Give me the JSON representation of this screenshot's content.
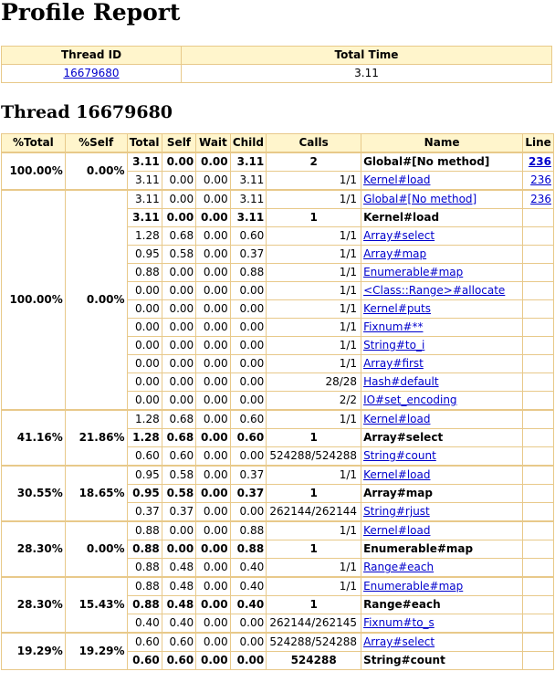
{
  "title": "Profile Report",
  "summary": {
    "headers": [
      "Thread ID",
      "Total Time"
    ],
    "thread_id": "16679680",
    "total_time": "3.11"
  },
  "thread_heading": "Thread 16679680",
  "table": {
    "headers": [
      "%Total",
      "%Self",
      "Total",
      "Self",
      "Wait",
      "Child",
      "Calls",
      "Name",
      "Line"
    ],
    "groups": [
      {
        "pct_total": "100.00%",
        "pct_self": "0.00%",
        "rows": [
          {
            "total": "3.11",
            "self": "0.00",
            "wait": "0.00",
            "child": "3.11",
            "calls": "2",
            "name": "Global#[No method]",
            "line": "236",
            "primary": true
          },
          {
            "total": "3.11",
            "self": "0.00",
            "wait": "0.00",
            "child": "3.11",
            "calls": "1/1",
            "name": "Kernel#load",
            "line": "236",
            "primary": false
          }
        ]
      },
      {
        "pct_total": "100.00%",
        "pct_self": "0.00%",
        "rows": [
          {
            "total": "3.11",
            "self": "0.00",
            "wait": "0.00",
            "child": "3.11",
            "calls": "1/1",
            "name": "Global#[No method]",
            "line": "236",
            "primary": false
          },
          {
            "total": "3.11",
            "self": "0.00",
            "wait": "0.00",
            "child": "3.11",
            "calls": "1",
            "name": "Kernel#load",
            "line": "",
            "primary": true
          },
          {
            "total": "1.28",
            "self": "0.68",
            "wait": "0.00",
            "child": "0.60",
            "calls": "1/1",
            "name": "Array#select",
            "line": "",
            "primary": false
          },
          {
            "total": "0.95",
            "self": "0.58",
            "wait": "0.00",
            "child": "0.37",
            "calls": "1/1",
            "name": "Array#map",
            "line": "",
            "primary": false
          },
          {
            "total": "0.88",
            "self": "0.00",
            "wait": "0.00",
            "child": "0.88",
            "calls": "1/1",
            "name": "Enumerable#map",
            "line": "",
            "primary": false
          },
          {
            "total": "0.00",
            "self": "0.00",
            "wait": "0.00",
            "child": "0.00",
            "calls": "1/1",
            "name": "<Class::Range>#allocate",
            "line": "",
            "primary": false
          },
          {
            "total": "0.00",
            "self": "0.00",
            "wait": "0.00",
            "child": "0.00",
            "calls": "1/1",
            "name": "Kernel#puts",
            "line": "",
            "primary": false
          },
          {
            "total": "0.00",
            "self": "0.00",
            "wait": "0.00",
            "child": "0.00",
            "calls": "1/1",
            "name": "Fixnum#**",
            "line": "",
            "primary": false
          },
          {
            "total": "0.00",
            "self": "0.00",
            "wait": "0.00",
            "child": "0.00",
            "calls": "1/1",
            "name": "String#to_i",
            "line": "",
            "primary": false
          },
          {
            "total": "0.00",
            "self": "0.00",
            "wait": "0.00",
            "child": "0.00",
            "calls": "1/1",
            "name": "Array#first",
            "line": "",
            "primary": false
          },
          {
            "total": "0.00",
            "self": "0.00",
            "wait": "0.00",
            "child": "0.00",
            "calls": "28/28",
            "name": "Hash#default",
            "line": "",
            "primary": false
          },
          {
            "total": "0.00",
            "self": "0.00",
            "wait": "0.00",
            "child": "0.00",
            "calls": "2/2",
            "name": "IO#set_encoding",
            "line": "",
            "primary": false
          }
        ]
      },
      {
        "pct_total": "41.16%",
        "pct_self": "21.86%",
        "rows": [
          {
            "total": "1.28",
            "self": "0.68",
            "wait": "0.00",
            "child": "0.60",
            "calls": "1/1",
            "name": "Kernel#load",
            "line": "",
            "primary": false
          },
          {
            "total": "1.28",
            "self": "0.68",
            "wait": "0.00",
            "child": "0.60",
            "calls": "1",
            "name": "Array#select",
            "line": "",
            "primary": true
          },
          {
            "total": "0.60",
            "self": "0.60",
            "wait": "0.00",
            "child": "0.00",
            "calls": "524288/524288",
            "name": "String#count",
            "line": "",
            "primary": false
          }
        ]
      },
      {
        "pct_total": "30.55%",
        "pct_self": "18.65%",
        "rows": [
          {
            "total": "0.95",
            "self": "0.58",
            "wait": "0.00",
            "child": "0.37",
            "calls": "1/1",
            "name": "Kernel#load",
            "line": "",
            "primary": false
          },
          {
            "total": "0.95",
            "self": "0.58",
            "wait": "0.00",
            "child": "0.37",
            "calls": "1",
            "name": "Array#map",
            "line": "",
            "primary": true
          },
          {
            "total": "0.37",
            "self": "0.37",
            "wait": "0.00",
            "child": "0.00",
            "calls": "262144/262144",
            "name": "String#rjust",
            "line": "",
            "primary": false
          }
        ]
      },
      {
        "pct_total": "28.30%",
        "pct_self": "0.00%",
        "rows": [
          {
            "total": "0.88",
            "self": "0.00",
            "wait": "0.00",
            "child": "0.88",
            "calls": "1/1",
            "name": "Kernel#load",
            "line": "",
            "primary": false
          },
          {
            "total": "0.88",
            "self": "0.00",
            "wait": "0.00",
            "child": "0.88",
            "calls": "1",
            "name": "Enumerable#map",
            "line": "",
            "primary": true
          },
          {
            "total": "0.88",
            "self": "0.48",
            "wait": "0.00",
            "child": "0.40",
            "calls": "1/1",
            "name": "Range#each",
            "line": "",
            "primary": false
          }
        ]
      },
      {
        "pct_total": "28.30%",
        "pct_self": "15.43%",
        "rows": [
          {
            "total": "0.88",
            "self": "0.48",
            "wait": "0.00",
            "child": "0.40",
            "calls": "1/1",
            "name": "Enumerable#map",
            "line": "",
            "primary": false
          },
          {
            "total": "0.88",
            "self": "0.48",
            "wait": "0.00",
            "child": "0.40",
            "calls": "1",
            "name": "Range#each",
            "line": "",
            "primary": true
          },
          {
            "total": "0.40",
            "self": "0.40",
            "wait": "0.00",
            "child": "0.00",
            "calls": "262144/262145",
            "name": "Fixnum#to_s",
            "line": "",
            "primary": false
          }
        ]
      },
      {
        "pct_total": "19.29%",
        "pct_self": "19.29%",
        "rows": [
          {
            "total": "0.60",
            "self": "0.60",
            "wait": "0.00",
            "child": "0.00",
            "calls": "524288/524288",
            "name": "Array#select",
            "line": "",
            "primary": false
          },
          {
            "total": "0.60",
            "self": "0.60",
            "wait": "0.00",
            "child": "0.00",
            "calls": "524288",
            "name": "String#count",
            "line": "",
            "primary": true
          }
        ]
      }
    ]
  }
}
